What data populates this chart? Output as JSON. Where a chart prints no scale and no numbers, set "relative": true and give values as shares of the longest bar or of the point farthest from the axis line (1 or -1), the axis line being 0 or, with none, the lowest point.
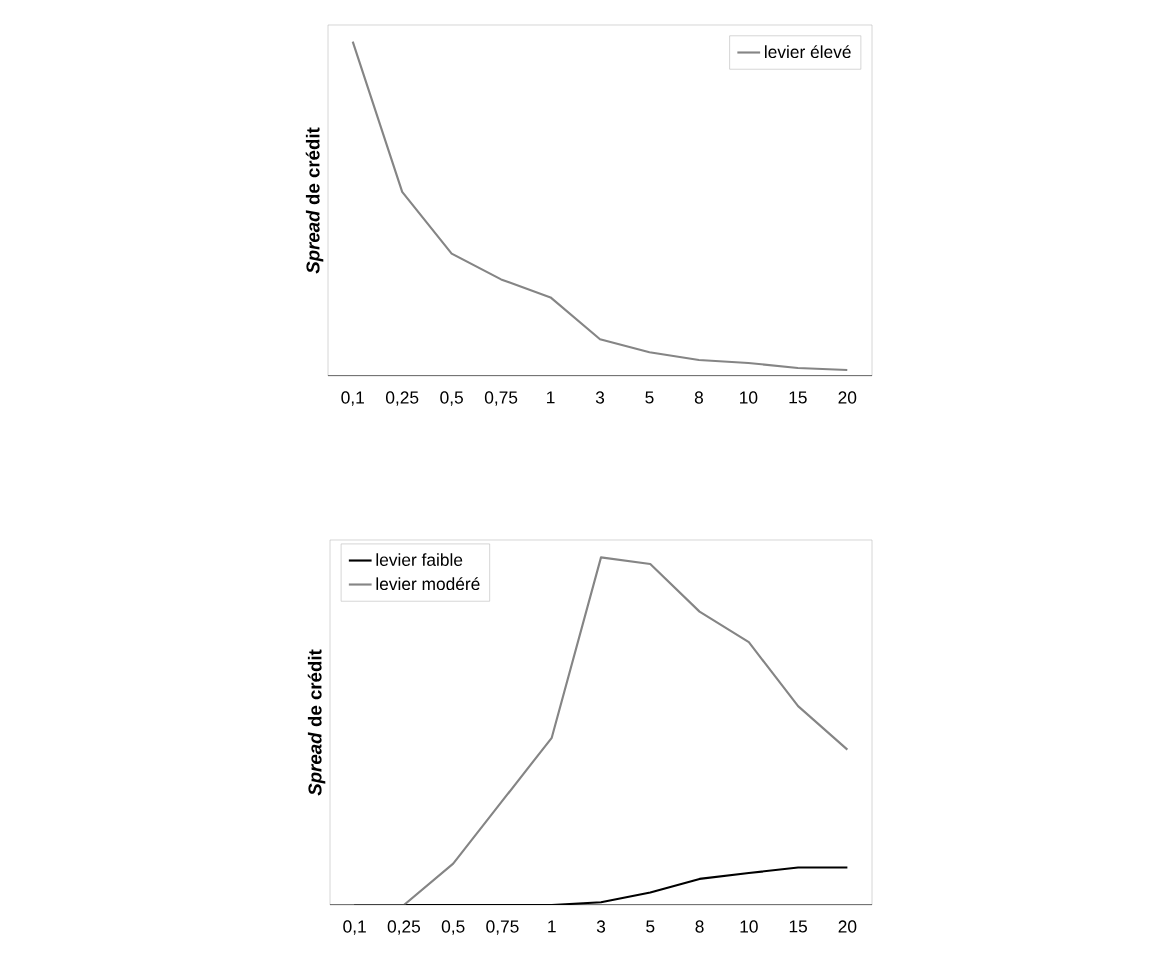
{
  "chart_data": [
    {
      "type": "line",
      "relative": true,
      "ylabel": "*Spread* de crédit",
      "legend": "top right",
      "categories": [
        "0,1",
        "0,25",
        "0,5",
        "0,75",
        "1",
        "3",
        "5",
        "8",
        "10",
        "15",
        "20"
      ],
      "series": [
        {
          "name": "levier élevé",
          "color": "#858585",
          "values": [
            1.0,
            0.551,
            0.366,
            0.289,
            0.235,
            0.11,
            0.071,
            0.048,
            0.039,
            0.024,
            0.018
          ]
        }
      ]
    },
    {
      "type": "line",
      "relative": true,
      "ylabel": "*Spread* de crédit",
      "legend": "top left",
      "categories": [
        "0,1",
        "0,25",
        "0,5",
        "0,75",
        "1",
        "3",
        "5",
        "8",
        "10",
        "15",
        "20"
      ],
      "series": [
        {
          "name": "levier faible",
          "color": "#000000",
          "values": [
            0,
            0,
            0,
            0,
            0,
            0.008,
            0.036,
            0.075,
            0.092,
            0.108,
            0.108
          ]
        },
        {
          "name": "levier modéré",
          "color": "#858585",
          "values": [
            0,
            0,
            0.119,
            0.3,
            0.481,
            1.0,
            0.981,
            0.844,
            0.756,
            0.572,
            0.447
          ]
        }
      ]
    }
  ]
}
